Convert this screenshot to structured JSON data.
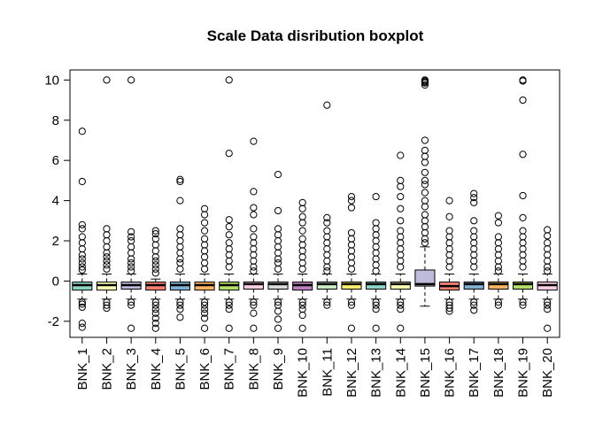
{
  "chart_data": {
    "type": "boxplot",
    "title": "Scale Data disribution boxplot",
    "xlabel": "",
    "ylabel": "",
    "ylim": [
      -2.8,
      10.5
    ],
    "yticks": [
      -2,
      0,
      2,
      4,
      6,
      8,
      10
    ],
    "ytick_labels": [
      "-2",
      "0",
      "2",
      "4",
      "6",
      "8",
      "10"
    ],
    "grid": false,
    "legend": "none",
    "categories": [
      "BNK_1",
      "BNK_2",
      "BNK_3",
      "BNK_4",
      "BNK_5",
      "BNK_6",
      "BNK_7",
      "BNK_8",
      "BNK_9",
      "BNK_10",
      "BNK_11",
      "BNK_12",
      "BNK_13",
      "BNK_14",
      "BNK_15",
      "BNK_16",
      "BNK_17",
      "BNK_18",
      "BNK_19",
      "BNK_20"
    ],
    "colors": [
      "#8DD3C7",
      "#FFFFB3",
      "#BEBADA",
      "#FB8072",
      "#80B1D3",
      "#FDB462",
      "#B3DE69",
      "#FCCDE5",
      "#D9D9D9",
      "#BC80BD",
      "#CCEBC5",
      "#FFED6F",
      "#8DD3C7",
      "#FFFFB3",
      "#BEBADA",
      "#FB8072",
      "#80B1D3",
      "#FDB462",
      "#B3DE69",
      "#FCCDE5"
    ],
    "boxes": [
      {
        "q1": -0.45,
        "median": -0.2,
        "q3": -0.05,
        "whisker_low": -0.9,
        "whisker_high": 0.35,
        "outliers": [
          7.45,
          4.95,
          2.8,
          2.6,
          2.2,
          1.9,
          1.6,
          1.3,
          1.1,
          0.9,
          0.7,
          0.55,
          -1.05,
          -1.15,
          -1.3,
          -2.1,
          -2.3
        ]
      },
      {
        "q1": -0.45,
        "median": -0.2,
        "q3": -0.05,
        "whisker_low": -0.9,
        "whisker_high": 0.35,
        "outliers": [
          10.0,
          2.6,
          2.3,
          2.0,
          1.7,
          1.4,
          1.2,
          1.0,
          0.8,
          0.6,
          -1.05,
          -1.2,
          -1.35
        ]
      },
      {
        "q1": -0.4,
        "median": -0.2,
        "q3": -0.05,
        "whisker_low": -0.9,
        "whisker_high": 0.35,
        "outliers": [
          10.0,
          2.45,
          2.2,
          2.0,
          1.7,
          1.4,
          1.1,
          0.9,
          0.7,
          0.5,
          -1.05,
          -1.2,
          -2.35
        ]
      },
      {
        "q1": -0.45,
        "median": -0.2,
        "q3": -0.05,
        "whisker_low": -0.9,
        "whisker_high": 0.1,
        "outliers": [
          2.5,
          2.35,
          2.1,
          1.8,
          1.5,
          1.2,
          1.0,
          0.8,
          0.6,
          0.4,
          -1.05,
          -1.2,
          -1.4,
          -1.6,
          -1.85,
          -2.1,
          -2.35
        ]
      },
      {
        "q1": -0.45,
        "median": -0.2,
        "q3": -0.05,
        "whisker_low": -0.9,
        "whisker_high": 0.35,
        "outliers": [
          5.05,
          4.95,
          4.0,
          2.6,
          2.3,
          2.0,
          1.7,
          1.4,
          1.1,
          0.9,
          0.6,
          -1.05,
          -1.2,
          -1.4,
          -1.8
        ]
      },
      {
        "q1": -0.45,
        "median": -0.2,
        "q3": -0.05,
        "whisker_low": -0.9,
        "whisker_high": 0.35,
        "outliers": [
          3.6,
          3.3,
          2.9,
          2.5,
          2.1,
          1.8,
          1.5,
          1.2,
          0.9,
          0.6,
          -1.05,
          -1.2,
          -1.4,
          -1.6,
          -1.85,
          -2.35
        ]
      },
      {
        "q1": -0.45,
        "median": -0.2,
        "q3": -0.05,
        "whisker_low": -0.9,
        "whisker_high": 0.35,
        "outliers": [
          10.0,
          6.35,
          3.05,
          2.7,
          2.3,
          1.9,
          1.6,
          1.3,
          1.0,
          0.7,
          -1.05,
          -1.2,
          -1.4,
          -2.35
        ]
      },
      {
        "q1": -0.4,
        "median": -0.15,
        "q3": -0.05,
        "whisker_low": -0.9,
        "whisker_high": 0.35,
        "outliers": [
          6.95,
          4.45,
          3.65,
          3.3,
          2.6,
          2.2,
          1.9,
          1.6,
          1.3,
          1.0,
          0.7,
          0.5,
          -1.05,
          -1.2,
          -1.6,
          -2.35
        ]
      },
      {
        "q1": -0.4,
        "median": -0.15,
        "q3": -0.05,
        "whisker_low": -0.9,
        "whisker_high": 0.35,
        "outliers": [
          5.3,
          3.5,
          2.6,
          2.3,
          2.0,
          1.7,
          1.4,
          1.1,
          0.9,
          0.6,
          -1.05,
          -1.2,
          -1.5,
          -1.9,
          -2.35
        ]
      },
      {
        "q1": -0.45,
        "median": -0.2,
        "q3": -0.05,
        "whisker_low": -0.9,
        "whisker_high": 0.35,
        "outliers": [
          3.9,
          3.6,
          3.2,
          2.9,
          2.5,
          2.1,
          1.8,
          1.5,
          1.2,
          0.9,
          0.6,
          -1.05,
          -1.2,
          -1.4,
          -1.7,
          -2.35
        ]
      },
      {
        "q1": -0.4,
        "median": -0.15,
        "q3": -0.05,
        "whisker_low": -0.9,
        "whisker_high": 0.35,
        "outliers": [
          8.75,
          3.15,
          2.9,
          2.5,
          2.2,
          1.9,
          1.6,
          1.3,
          1.0,
          0.7,
          0.5,
          -1.05,
          -1.2
        ]
      },
      {
        "q1": -0.4,
        "median": -0.15,
        "q3": -0.05,
        "whisker_low": -0.9,
        "whisker_high": 0.35,
        "outliers": [
          4.2,
          4.0,
          3.65,
          2.4,
          2.1,
          1.8,
          1.5,
          1.2,
          0.9,
          0.6,
          -1.05,
          -1.2,
          -2.35
        ]
      },
      {
        "q1": -0.4,
        "median": -0.15,
        "q3": -0.05,
        "whisker_low": -0.9,
        "whisker_high": 0.35,
        "outliers": [
          4.2,
          2.9,
          2.6,
          2.3,
          2.0,
          1.7,
          1.4,
          1.1,
          0.8,
          0.5,
          -1.05,
          -1.2,
          -1.4,
          -2.35
        ]
      },
      {
        "q1": -0.4,
        "median": -0.15,
        "q3": -0.05,
        "whisker_low": -0.9,
        "whisker_high": 0.35,
        "outliers": [
          6.25,
          5.0,
          4.7,
          4.2,
          3.6,
          3.0,
          2.5,
          2.2,
          1.9,
          1.6,
          1.3,
          1.0,
          0.7,
          -1.05,
          -1.2,
          -1.4,
          -2.35
        ]
      },
      {
        "q1": -0.25,
        "median": -0.15,
        "q3": 0.55,
        "whisker_low": -1.25,
        "whisker_high": 1.7,
        "outliers": [
          10.0,
          9.95,
          9.9,
          9.85,
          9.75,
          7.0,
          6.5,
          6.2,
          5.9,
          5.4,
          5.0,
          4.8,
          4.4,
          4.0,
          3.7,
          3.3,
          3.0,
          2.7,
          2.4,
          2.1,
          1.9
        ]
      },
      {
        "q1": -0.45,
        "median": -0.25,
        "q3": -0.05,
        "whisker_low": -0.9,
        "whisker_high": 0.35,
        "outliers": [
          4.0,
          3.2,
          2.5,
          2.2,
          1.9,
          1.6,
          1.3,
          1.0,
          0.7,
          -1.05,
          -1.2,
          -1.35,
          -1.5
        ]
      },
      {
        "q1": -0.4,
        "median": -0.15,
        "q3": -0.05,
        "whisker_low": -0.9,
        "whisker_high": 0.35,
        "outliers": [
          4.35,
          4.15,
          3.9,
          3.0,
          2.5,
          2.2,
          1.9,
          1.6,
          1.3,
          1.0,
          0.7,
          -1.05,
          -1.2,
          -1.45
        ]
      },
      {
        "q1": -0.4,
        "median": -0.15,
        "q3": -0.05,
        "whisker_low": -0.9,
        "whisker_high": 0.35,
        "outliers": [
          3.25,
          2.9,
          2.2,
          1.9,
          1.6,
          1.3,
          1.0,
          0.7,
          0.5,
          -1.05,
          -1.2
        ]
      },
      {
        "q1": -0.4,
        "median": -0.15,
        "q3": -0.05,
        "whisker_low": -0.9,
        "whisker_high": 0.35,
        "outliers": [
          10.0,
          9.95,
          9.0,
          6.3,
          4.25,
          3.15,
          2.5,
          2.2,
          1.9,
          1.6,
          1.3,
          1.0,
          0.7,
          -1.05,
          -1.2
        ]
      },
      {
        "q1": -0.45,
        "median": -0.2,
        "q3": -0.05,
        "whisker_low": -0.9,
        "whisker_high": 0.35,
        "outliers": [
          2.55,
          2.25,
          1.9,
          1.6,
          1.3,
          1.0,
          0.7,
          0.5,
          -1.05,
          -1.2,
          -1.4,
          -2.35
        ]
      }
    ]
  }
}
